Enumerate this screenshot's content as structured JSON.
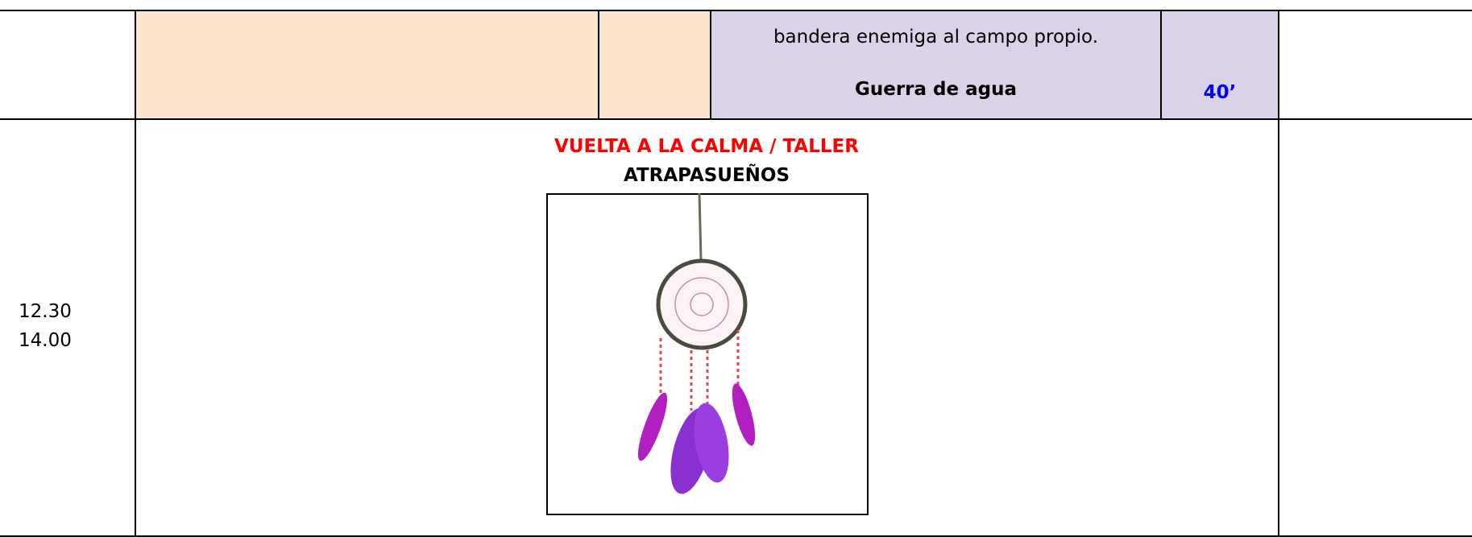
{
  "table": {
    "rows": [
      {
        "cells": [
          "",
          "",
          "",
          "bandera enemiga al campo propio.",
          "",
          ""
        ],
        "activity": "Guerra de agua",
        "duration": "40’"
      },
      {
        "time": [
          "12.30",
          "14.00"
        ],
        "heading": "VUELTA A LA CALMA / TALLER",
        "subheading": "ATRAPASUEÑOS"
      }
    ]
  }
}
